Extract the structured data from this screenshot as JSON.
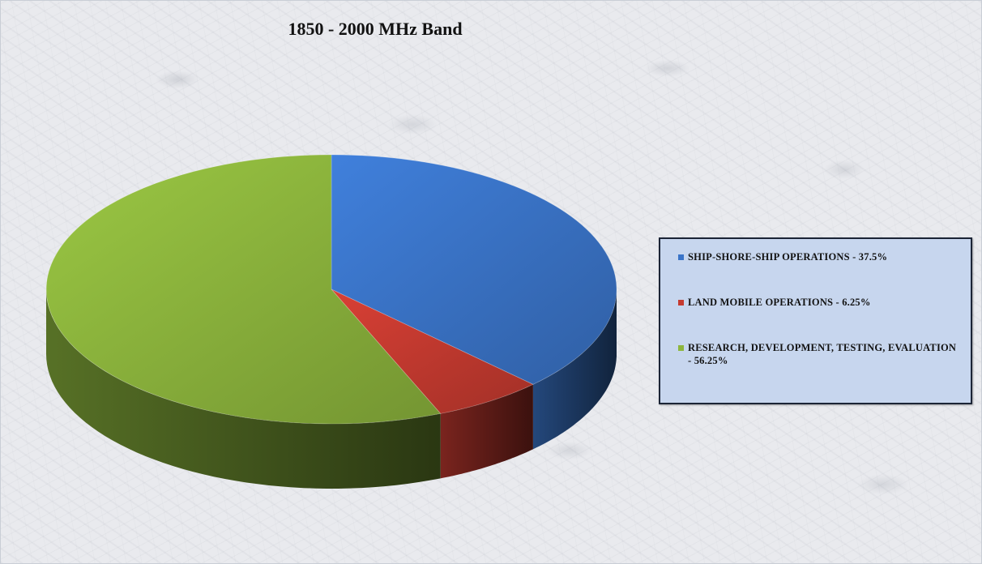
{
  "chart_data": {
    "type": "pie",
    "title": "1850 - 2000 MHz Band",
    "slices": [
      {
        "label": "SHIP-SHORE-SHIP OPERATIONS - 37.5%",
        "value": 37.5,
        "color": "#3a74c8"
      },
      {
        "label": "LAND MOBILE OPERATIONS - 6.25%",
        "value": 6.25,
        "color": "#c53a30"
      },
      {
        "label": "RESEARCH, DEVELOPMENT, TESTING, EVALUATION - 56.25%",
        "value": 56.25,
        "color": "#8db63d"
      }
    ],
    "legend": "right",
    "style": "3d"
  }
}
